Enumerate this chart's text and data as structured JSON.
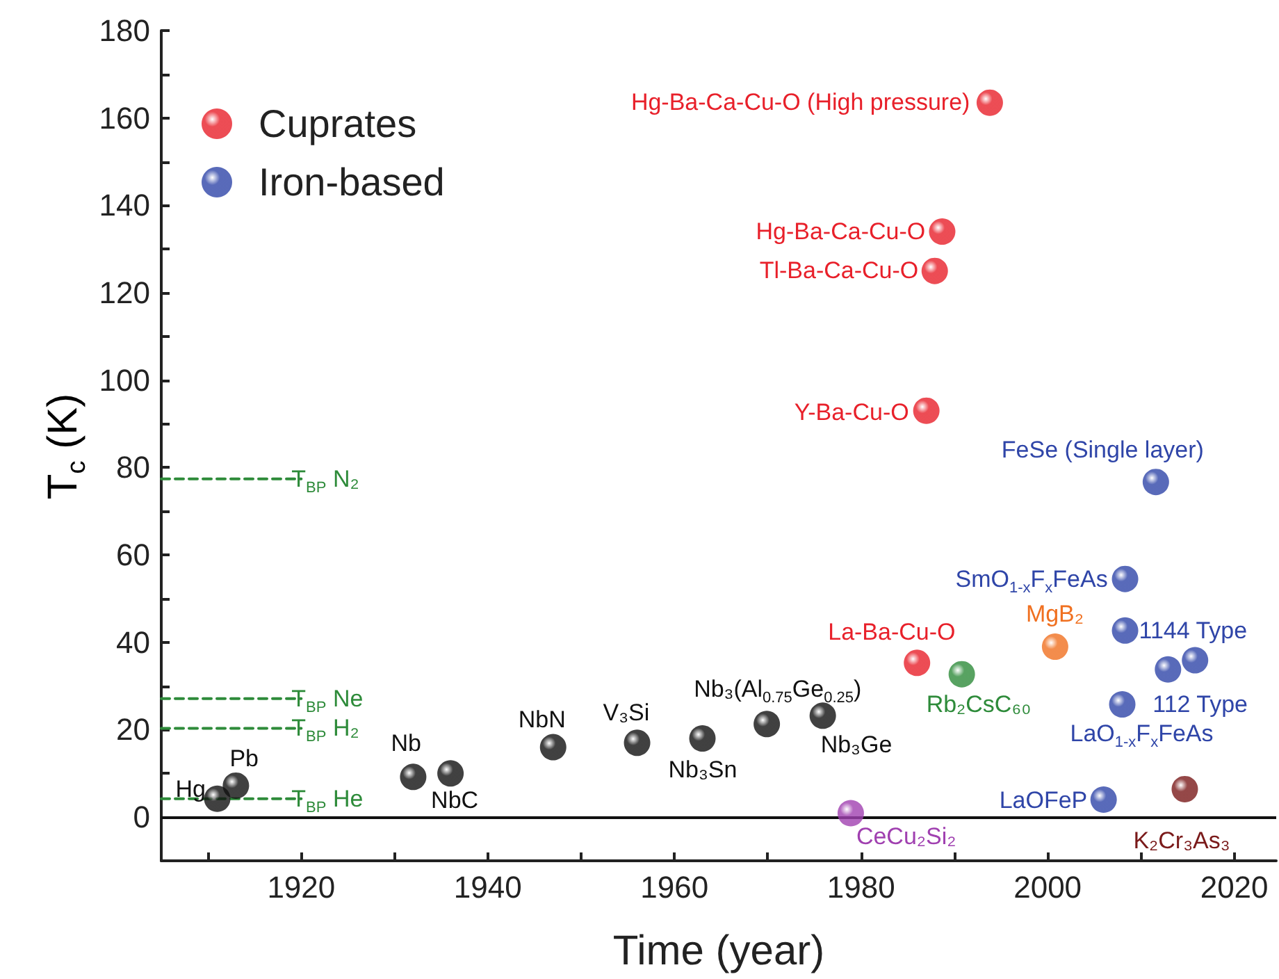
{
  "chart_data": {
    "type": "scatter",
    "xlabel": "Time (year)",
    "ylabel": "T$_{c}$ (K)",
    "xlim": [
      1905,
      2024.5
    ],
    "ylim": [
      -10,
      180
    ],
    "xticks": [
      {
        "value": 1910,
        "label": null
      },
      1920,
      {
        "value": 1930,
        "label": null
      },
      1940,
      {
        "value": 1950,
        "label": null
      },
      1960,
      {
        "value": 1970,
        "label": null
      },
      1980,
      {
        "value": 1990,
        "label": null
      },
      2000,
      {
        "value": 2010,
        "label": null
      },
      2020
    ],
    "yticks": [
      0,
      {
        "value": 10,
        "label": null
      },
      20,
      {
        "value": 30,
        "label": null
      },
      40,
      {
        "value": 50,
        "label": null
      },
      60,
      {
        "value": 70,
        "label": null
      },
      80,
      {
        "value": 90,
        "label": null
      },
      100,
      {
        "value": 110,
        "label": null
      },
      120,
      {
        "value": 130,
        "label": null
      },
      140,
      {
        "value": 150,
        "label": null
      },
      160,
      {
        "value": 170,
        "label": null
      },
      180
    ],
    "grid": false,
    "legend": "top left",
    "marker": "circle",
    "series": [
      {
        "color": "#111111",
        "x": [
          1911,
          1913,
          1932,
          1936,
          1947,
          1956,
          1963,
          1969.9,
          1975.9
        ],
        "values": [
          4.2,
          7.2,
          9.2,
          10,
          16,
          17,
          18,
          21.3,
          23.2
        ]
      },
      {
        "name": "Cuprates",
        "color": "#e8202a",
        "x": [
          1986,
          1987,
          1987.9,
          1988.7,
          1993.8
        ],
        "values": [
          35.3,
          93,
          125,
          134,
          163.5
        ]
      },
      {
        "name": "Iron-based",
        "color": "#2f45a8",
        "x": [
          2006,
          2008,
          2008.3,
          2008.3,
          2011.6,
          2012.9,
          2015.8
        ],
        "values": [
          4,
          25.8,
          42.7,
          54.5,
          76.7,
          33.8,
          35.9
        ]
      },
      {
        "color": "#f07020",
        "x": [
          2000.8
        ],
        "values": [
          39
        ]
      },
      {
        "color": "#2e8b3a",
        "x": [
          1990.8
        ],
        "values": [
          32.7
        ]
      },
      {
        "color": "#a040b0",
        "x": [
          1978.9
        ],
        "values": [
          0.9
        ]
      },
      {
        "color": "#7a1a1a",
        "x": [
          2014.7
        ],
        "values": [
          6.4
        ]
      },
      {
        "type": "line",
        "color": "#2e8b3a",
        "line_style": "dashed",
        "marker": "none",
        "x": [
          1905,
          1920
        ],
        "values": [
          77.4,
          77.4
        ]
      },
      {
        "type": "line",
        "color": "#2e8b3a",
        "line_style": "dashed",
        "marker": "none",
        "x": [
          1905,
          1920
        ],
        "values": [
          27.1,
          27.1
        ]
      },
      {
        "type": "line",
        "color": "#2e8b3a",
        "line_style": "dashed",
        "marker": "none",
        "x": [
          1905,
          1920
        ],
        "values": [
          20.3,
          20.3
        ]
      },
      {
        "type": "line",
        "color": "#2e8b3a",
        "line_style": "dashed",
        "marker": "none",
        "x": [
          1905,
          1920
        ],
        "values": [
          4.2,
          4.2
        ]
      }
    ],
    "ref_lines": [
      {
        "axis": "y",
        "value": 0,
        "color": "#111111",
        "line_style": "solid"
      }
    ],
    "annotations": [
      {
        "text": "T$_{BP}$ N₂",
        "x": 1920,
        "y": 77.4
      },
      {
        "text": "T$_{BP}$ Ne",
        "x": 1920,
        "y": 27.1
      },
      {
        "text": "T$_{BP}$ H₂",
        "x": 1920,
        "y": 20.3
      },
      {
        "text": "T$_{BP}$ He",
        "x": 1920,
        "y": 4.2
      },
      {
        "text": "Hg",
        "x": 1911,
        "y": 4.2
      },
      {
        "text": "Pb",
        "x": 1913,
        "y": 7.2
      },
      {
        "text": "Nb",
        "x": 1932,
        "y": 9.2
      },
      {
        "text": "NbC",
        "x": 1936,
        "y": 10
      },
      {
        "text": "NbN",
        "x": 1947,
        "y": 16
      },
      {
        "text": "V₃Si",
        "x": 1956,
        "y": 17
      },
      {
        "text": "Nb₃Sn",
        "x": 1963,
        "y": 18
      },
      {
        "text": "Nb₃(Al$_{0.75}$Ge$_{0.25}$)",
        "x": 1969.9,
        "y": 21.3
      },
      {
        "text": "Nb₃Ge",
        "x": 1975.9,
        "y": 23.2
      },
      {
        "text": "La-Ba-Cu-O",
        "x": 1986,
        "y": 35.3
      },
      {
        "text": "Y-Ba-Cu-O",
        "x": 1987,
        "y": 93
      },
      {
        "text": "Tl-Ba-Ca-Cu-O",
        "x": 1987.9,
        "y": 125
      },
      {
        "text": "Hg-Ba-Ca-Cu-O",
        "x": 1988.7,
        "y": 134
      },
      {
        "text": "Hg-Ba-Ca-Cu-O (High pressure)",
        "x": 1993.8,
        "y": 163.5
      },
      {
        "text": "Rb₂CsC₆₀",
        "x": 1990.8,
        "y": 32.7
      },
      {
        "text": "MgB₂",
        "x": 2000.8,
        "y": 39
      },
      {
        "text": "SmO$_{1-x}$F$_{x}$FeAs",
        "x": 2008.3,
        "y": 54.5
      },
      {
        "text": "1144 Type",
        "x": 2008.3,
        "y": 42.7
      },
      {
        "text": "112 Type",
        "x": 2012.9,
        "y": 33.8
      },
      {
        "text": "LaO$_{1-x}$F$_{x}$FeAs",
        "x": 2008,
        "y": 25.8
      },
      {
        "text": "LaOFeP",
        "x": 2006,
        "y": 4
      },
      {
        "text": "FeSe (Single layer)",
        "x": 2011.6,
        "y": 76.7
      },
      {
        "text": "CeCu₂Si₂",
        "x": 1978.9,
        "y": 0.9
      },
      {
        "text": "K₂Cr₃As₃",
        "x": 2014.7,
        "y": 6.4
      }
    ]
  }
}
